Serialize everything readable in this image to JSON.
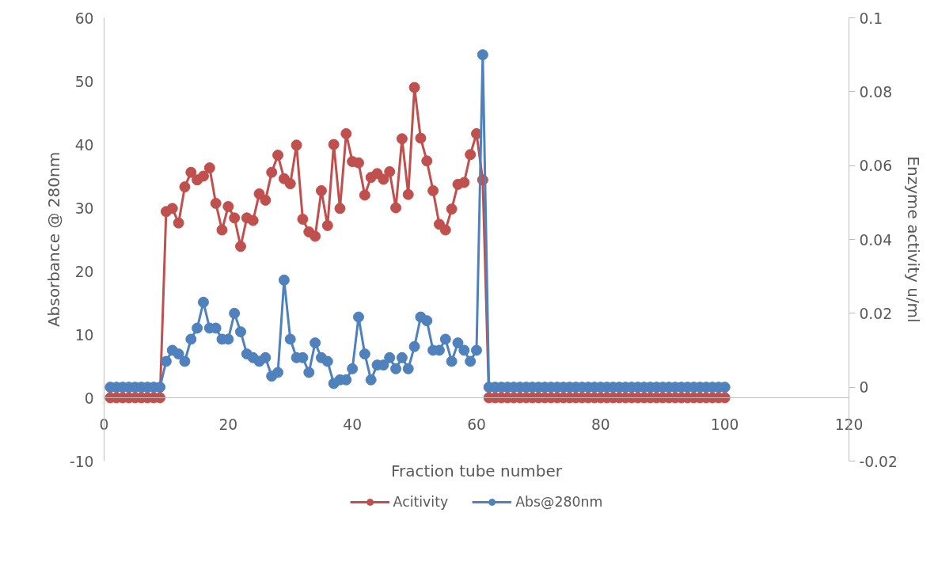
{
  "chart_data": {
    "type": "line",
    "xlabel": "Fraction tube number",
    "ylabel": "Absorbance @ 280nm",
    "y2label": "Enzyme activity u/ml",
    "x": [
      1,
      2,
      3,
      4,
      5,
      6,
      7,
      8,
      9,
      10,
      11,
      12,
      13,
      14,
      15,
      16,
      17,
      18,
      19,
      20,
      21,
      22,
      23,
      24,
      25,
      26,
      27,
      28,
      29,
      30,
      31,
      32,
      33,
      34,
      35,
      36,
      37,
      38,
      39,
      40,
      41,
      42,
      43,
      44,
      45,
      46,
      47,
      48,
      49,
      50,
      51,
      52,
      53,
      54,
      55,
      56,
      57,
      58,
      59,
      60,
      61,
      62,
      63,
      64,
      65,
      66,
      67,
      68,
      69,
      70,
      71,
      72,
      73,
      74,
      75,
      76,
      77,
      78,
      79,
      80,
      81,
      82,
      83,
      84,
      85,
      86,
      87,
      88,
      89,
      90,
      91,
      92,
      93,
      94,
      95,
      96,
      97,
      98,
      99,
      100
    ],
    "series": [
      {
        "name": "Acitivity",
        "color": "#c0504d",
        "values": [
          0,
          0,
          0,
          0,
          0,
          0,
          0,
          0,
          0,
          29.4,
          29.9,
          27.6,
          33.3,
          35.6,
          34.4,
          35,
          36.3,
          30.7,
          26.5,
          30.2,
          28.4,
          23.9,
          28.4,
          28,
          32.2,
          31.2,
          35.6,
          38.3,
          34.6,
          33.8,
          39.9,
          28.2,
          26.2,
          25.5,
          32.7,
          27.2,
          40,
          29.9,
          41.7,
          37.3,
          37.1,
          32,
          34.8,
          35.4,
          34.5,
          35.7,
          30,
          40.9,
          32.1,
          49,
          41,
          37.4,
          32.7,
          27.4,
          26.5,
          29.8,
          33.7,
          34,
          38.4,
          41.7,
          34.4,
          0,
          0,
          0,
          0,
          0,
          0,
          0,
          0,
          0,
          0,
          0,
          0,
          0,
          0,
          0,
          0,
          0,
          0,
          0,
          0,
          0,
          0,
          0,
          0,
          0,
          0,
          0,
          0,
          0,
          0,
          0,
          0,
          0,
          0,
          0,
          0,
          0,
          0,
          0
        ]
      },
      {
        "name": "Abs@280nm",
        "color": "#4f81bd",
        "axis": "y2",
        "values": [
          0,
          0,
          0,
          0,
          0,
          0,
          0,
          0,
          0,
          0.007,
          0.01,
          0.009,
          0.007,
          0.013,
          0.016,
          0.023,
          0.016,
          0.016,
          0.013,
          0.013,
          0.02,
          0.015,
          0.009,
          0.008,
          0.007,
          0.008,
          0.003,
          0.004,
          0.029,
          0.013,
          0.008,
          0.008,
          0.004,
          0.012,
          0.008,
          0.007,
          0.001,
          0.002,
          0.002,
          0.005,
          0.019,
          0.009,
          0.002,
          0.006,
          0.006,
          0.008,
          0.005,
          0.008,
          0.005,
          0.011,
          0.019,
          0.018,
          0.01,
          0.01,
          0.013,
          0.007,
          0.012,
          0.01,
          0.007,
          0.01,
          0.09,
          0,
          0,
          0,
          0,
          0,
          0,
          0,
          0,
          0,
          0,
          0,
          0,
          0,
          0,
          0,
          0,
          0,
          0,
          0,
          0,
          0,
          0,
          0,
          0,
          0,
          0,
          0,
          0,
          0,
          0,
          0,
          0,
          0,
          0,
          0,
          0,
          0,
          0,
          0
        ]
      }
    ],
    "xlim": [
      0,
      120
    ],
    "xticks": [
      0,
      20,
      40,
      60,
      80,
      100,
      120
    ],
    "ylim": [
      -10,
      60
    ],
    "yticks": [
      -10,
      0,
      10,
      20,
      30,
      40,
      50,
      60
    ],
    "y2lim": [
      -0.02,
      0.1
    ],
    "y2ticks": [
      -0.02,
      0,
      0.02,
      0.04,
      0.06,
      0.08,
      0.1
    ],
    "marker": "circle",
    "legend": "bottom",
    "grid": false
  }
}
